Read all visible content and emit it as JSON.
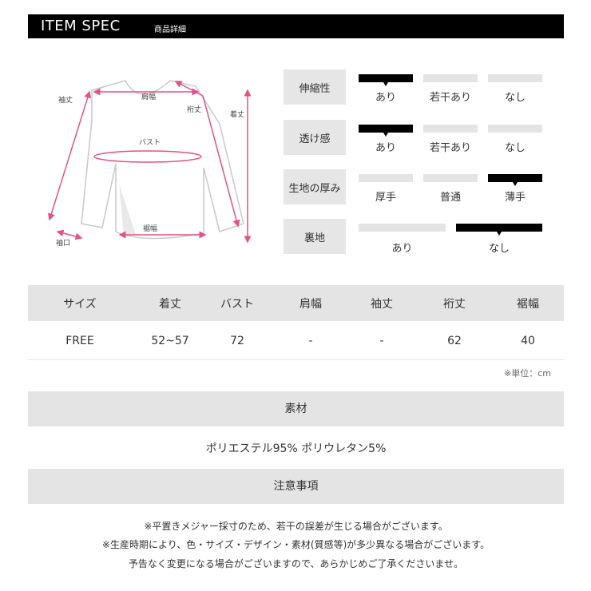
{
  "header": {
    "title": "ITEM SPEC",
    "subtitle": "商品詳細"
  },
  "diagram": {
    "labels": {
      "sleeve": "袖丈",
      "shoulder": "肩幅",
      "yuki": "裄丈",
      "length": "着丈",
      "bust": "バスト",
      "hem": "裾幅",
      "cuff": "袖口"
    },
    "accent": "#e2518a"
  },
  "spec": [
    {
      "label": "伸縮性",
      "options": [
        "あり",
        "若干あり",
        "なし"
      ],
      "selected": 0
    },
    {
      "label": "透け感",
      "options": [
        "あり",
        "若干あり",
        "なし"
      ],
      "selected": 0
    },
    {
      "label": "生地の厚み",
      "options": [
        "厚手",
        "普通",
        "薄手"
      ],
      "selected": 2
    },
    {
      "label": "裏地",
      "options": [
        "あり",
        "なし"
      ],
      "selected": 1
    }
  ],
  "size_table": {
    "headers": [
      "サイズ",
      "着丈",
      "バスト",
      "肩幅",
      "袖丈",
      "裄丈",
      "裾幅"
    ],
    "rows": [
      [
        "FREE",
        "52~57",
        "72",
        "-",
        "-",
        "62",
        "40"
      ]
    ],
    "unit": "※単位：cm"
  },
  "material": {
    "heading": "素材",
    "text": "ポリエステル95% ポリウレタン5%"
  },
  "notes": {
    "heading": "注意事項",
    "lines": [
      "※平置きメジャー採寸のため、若干の誤差が生じる場合がございます。",
      "※生産時期により、色・サイズ・デザイン・素材(質感等)が多少異なる場合がございます。",
      "予告なく変更になる場合がございますので、あらかじめご了承くださいませ。"
    ]
  }
}
